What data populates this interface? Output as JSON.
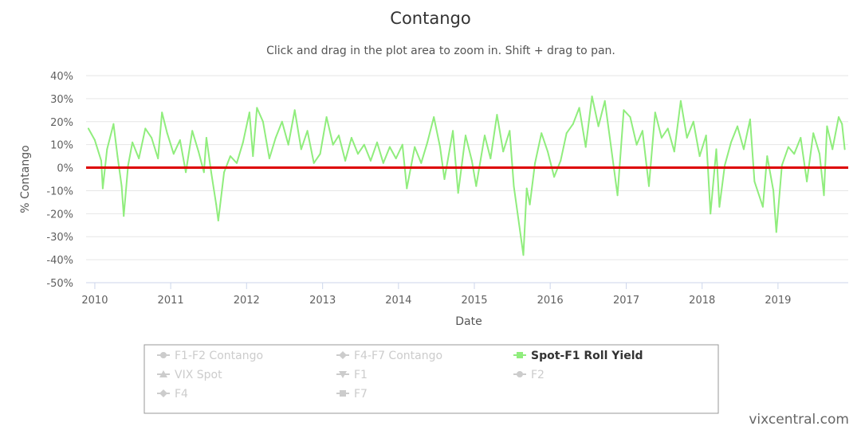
{
  "chart_data": {
    "type": "line",
    "title": "Contango",
    "subtitle": "Click and drag in the plot area to zoom in. Shift + drag to pan.",
    "xlabel": "Date",
    "ylabel": "% Contango",
    "xlim": [
      "2009-11-20",
      "2019-12-05"
    ],
    "ylim": [
      -50,
      40
    ],
    "y_ticks": [
      40,
      30,
      20,
      10,
      0,
      -10,
      -20,
      -30,
      -40,
      -50
    ],
    "y_tick_labels": [
      "40%",
      "30%",
      "20%",
      "10%",
      "0%",
      "-10%",
      "-20%",
      "-30%",
      "-40%",
      "-50%"
    ],
    "x_ticks": [
      "2010",
      "2011",
      "2012",
      "2013",
      "2014",
      "2015",
      "2016",
      "2017",
      "2018",
      "2019"
    ],
    "grid": true,
    "reference_line": {
      "y": 0,
      "color": "#dd0000"
    },
    "series": [
      {
        "name": "Spot-F1 Roll Yield",
        "color": "#90ed7d",
        "visible": true,
        "points": [
          [
            "2009-12-01",
            17
          ],
          [
            "2010-01-01",
            12
          ],
          [
            "2010-02-01",
            3
          ],
          [
            "2010-02-08",
            -9
          ],
          [
            "2010-03-01",
            8
          ],
          [
            "2010-04-01",
            19
          ],
          [
            "2010-04-20",
            5
          ],
          [
            "2010-05-10",
            -8
          ],
          [
            "2010-05-20",
            -21
          ],
          [
            "2010-06-10",
            1
          ],
          [
            "2010-07-01",
            11
          ],
          [
            "2010-08-01",
            4
          ],
          [
            "2010-09-01",
            17
          ],
          [
            "2010-10-01",
            13
          ],
          [
            "2010-11-01",
            4
          ],
          [
            "2010-11-20",
            24
          ],
          [
            "2010-12-15",
            15
          ],
          [
            "2011-01-15",
            6
          ],
          [
            "2011-02-15",
            12
          ],
          [
            "2011-03-15",
            -2
          ],
          [
            "2011-04-15",
            16
          ],
          [
            "2011-05-15",
            7
          ],
          [
            "2011-06-10",
            -2
          ],
          [
            "2011-06-22",
            13
          ],
          [
            "2011-07-15",
            -2
          ],
          [
            "2011-08-08",
            -16
          ],
          [
            "2011-08-18",
            -23
          ],
          [
            "2011-09-15",
            -2
          ],
          [
            "2011-10-15",
            5
          ],
          [
            "2011-11-15",
            2
          ],
          [
            "2011-12-15",
            11
          ],
          [
            "2012-01-15",
            24
          ],
          [
            "2012-02-01",
            5
          ],
          [
            "2012-02-20",
            26
          ],
          [
            "2012-03-20",
            20
          ],
          [
            "2012-04-20",
            4
          ],
          [
            "2012-05-20",
            13
          ],
          [
            "2012-06-20",
            20
          ],
          [
            "2012-07-20",
            10
          ],
          [
            "2012-08-20",
            25
          ],
          [
            "2012-09-20",
            8
          ],
          [
            "2012-10-20",
            16
          ],
          [
            "2012-11-20",
            2
          ],
          [
            "2012-12-20",
            6
          ],
          [
            "2013-01-20",
            22
          ],
          [
            "2013-02-20",
            10
          ],
          [
            "2013-03-20",
            14
          ],
          [
            "2013-04-20",
            3
          ],
          [
            "2013-05-20",
            13
          ],
          [
            "2013-06-20",
            6
          ],
          [
            "2013-07-20",
            10
          ],
          [
            "2013-08-20",
            3
          ],
          [
            "2013-09-20",
            11
          ],
          [
            "2013-10-20",
            2
          ],
          [
            "2013-11-20",
            9
          ],
          [
            "2013-12-20",
            4
          ],
          [
            "2014-01-20",
            10
          ],
          [
            "2014-02-10",
            -9
          ],
          [
            "2014-03-20",
            9
          ],
          [
            "2014-04-20",
            2
          ],
          [
            "2014-05-20",
            11
          ],
          [
            "2014-06-20",
            22
          ],
          [
            "2014-07-20",
            9
          ],
          [
            "2014-08-10",
            -5
          ],
          [
            "2014-09-20",
            16
          ],
          [
            "2014-10-15",
            -11
          ],
          [
            "2014-11-20",
            14
          ],
          [
            "2014-12-20",
            3
          ],
          [
            "2015-01-10",
            -8
          ],
          [
            "2015-02-20",
            14
          ],
          [
            "2015-03-20",
            4
          ],
          [
            "2015-04-20",
            23
          ],
          [
            "2015-05-20",
            7
          ],
          [
            "2015-06-20",
            16
          ],
          [
            "2015-07-10",
            -8
          ],
          [
            "2015-08-25",
            -38
          ],
          [
            "2015-09-10",
            -9
          ],
          [
            "2015-09-25",
            -16
          ],
          [
            "2015-10-20",
            2
          ],
          [
            "2015-11-20",
            15
          ],
          [
            "2015-12-20",
            7
          ],
          [
            "2016-01-20",
            -4
          ],
          [
            "2016-02-20",
            3
          ],
          [
            "2016-03-20",
            15
          ],
          [
            "2016-04-20",
            19
          ],
          [
            "2016-05-20",
            26
          ],
          [
            "2016-06-20",
            9
          ],
          [
            "2016-07-20",
            31
          ],
          [
            "2016-08-20",
            18
          ],
          [
            "2016-09-20",
            29
          ],
          [
            "2016-10-20",
            9
          ],
          [
            "2016-11-20",
            -12
          ],
          [
            "2016-12-20",
            25
          ],
          [
            "2017-01-20",
            22
          ],
          [
            "2017-02-20",
            10
          ],
          [
            "2017-03-20",
            16
          ],
          [
            "2017-04-20",
            -8
          ],
          [
            "2017-05-20",
            24
          ],
          [
            "2017-06-20",
            13
          ],
          [
            "2017-07-20",
            17
          ],
          [
            "2017-08-20",
            7
          ],
          [
            "2017-09-20",
            29
          ],
          [
            "2017-10-20",
            13
          ],
          [
            "2017-11-20",
            20
          ],
          [
            "2017-12-20",
            5
          ],
          [
            "2018-01-20",
            14
          ],
          [
            "2018-02-10",
            -20
          ],
          [
            "2018-03-10",
            8
          ],
          [
            "2018-03-25",
            -17
          ],
          [
            "2018-04-20",
            1
          ],
          [
            "2018-05-20",
            11
          ],
          [
            "2018-06-20",
            18
          ],
          [
            "2018-07-20",
            8
          ],
          [
            "2018-08-20",
            21
          ],
          [
            "2018-09-10",
            -6
          ],
          [
            "2018-10-20",
            -17
          ],
          [
            "2018-11-10",
            5
          ],
          [
            "2018-12-10",
            -10
          ],
          [
            "2018-12-24",
            -28
          ],
          [
            "2019-01-20",
            1
          ],
          [
            "2019-02-20",
            9
          ],
          [
            "2019-03-20",
            6
          ],
          [
            "2019-04-20",
            13
          ],
          [
            "2019-05-20",
            -6
          ],
          [
            "2019-06-20",
            15
          ],
          [
            "2019-07-20",
            6
          ],
          [
            "2019-08-10",
            -12
          ],
          [
            "2019-08-25",
            18
          ],
          [
            "2019-09-20",
            8
          ],
          [
            "2019-10-20",
            22
          ],
          [
            "2019-11-05",
            19
          ],
          [
            "2019-11-18",
            8
          ]
        ]
      }
    ],
    "legend": {
      "placement": "bottom-center",
      "items": [
        {
          "label": "F1-F2 Contango",
          "symbol": "circle",
          "active": false
        },
        {
          "label": "F4-F7 Contango",
          "symbol": "diamond",
          "active": false
        },
        {
          "label": "Spot-F1 Roll Yield",
          "symbol": "square",
          "active": true
        },
        {
          "label": "VIX Spot",
          "symbol": "triangle",
          "active": false
        },
        {
          "label": "F1",
          "symbol": "triangle-down",
          "active": false
        },
        {
          "label": "F2",
          "symbol": "circle",
          "active": false
        },
        {
          "label": "F4",
          "symbol": "diamond",
          "active": false
        },
        {
          "label": "F7",
          "symbol": "square",
          "active": false
        }
      ]
    }
  },
  "credit": "vixcentral.com",
  "colors": {
    "inactive": "#cccccc",
    "active_line": "#90ed7d",
    "zero_line": "#dd0000"
  }
}
